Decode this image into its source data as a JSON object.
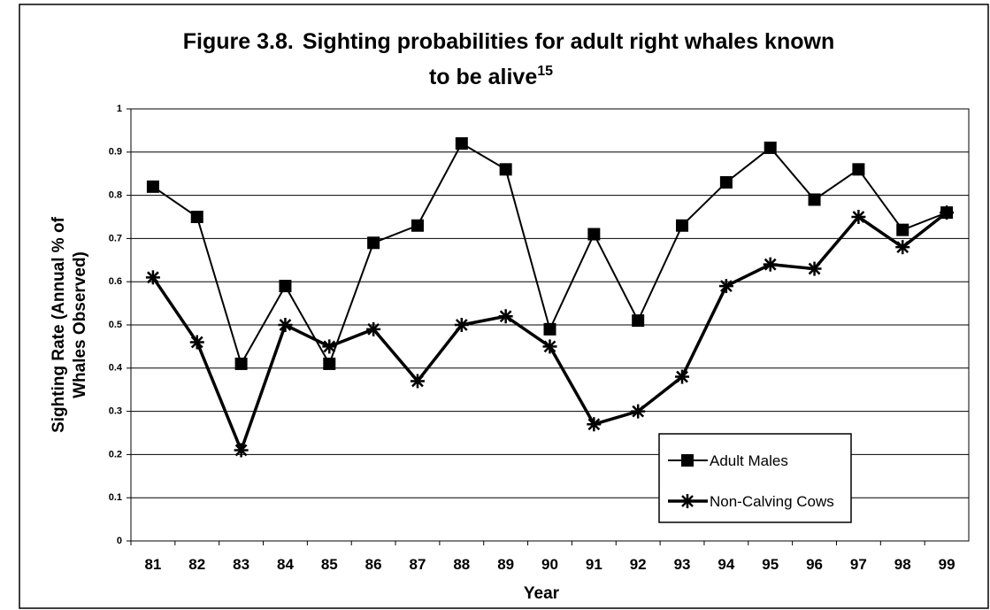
{
  "chart_data": {
    "type": "line",
    "title_prefix": "Figure 3.8.",
    "title": [
      "Sighting probabilities for adult right whales known",
      "to be alive"
    ],
    "title_superscript": "15",
    "x_label": "Year",
    "y_label": [
      "Sighting Rate (Annual % of",
      "Whales Observed)"
    ],
    "categories": [
      "81",
      "82",
      "83",
      "84",
      "85",
      "86",
      "87",
      "88",
      "89",
      "90",
      "91",
      "92",
      "93",
      "94",
      "95",
      "96",
      "97",
      "98",
      "99"
    ],
    "series": [
      {
        "name": "Adult Males",
        "color": "#000000",
        "marker": "square",
        "values": [
          0.82,
          0.75,
          0.41,
          0.59,
          0.41,
          0.69,
          0.73,
          0.92,
          0.86,
          0.49,
          0.71,
          0.51,
          0.73,
          0.83,
          0.91,
          0.79,
          0.86,
          0.72,
          0.76
        ]
      },
      {
        "name": "Non-Calving Cows",
        "color": "#000000",
        "marker": "asterisk",
        "values": [
          0.61,
          0.46,
          0.21,
          0.5,
          0.45,
          0.49,
          0.37,
          0.5,
          0.52,
          0.45,
          0.27,
          0.3,
          0.38,
          0.59,
          0.64,
          0.63,
          0.75,
          0.68,
          0.76
        ]
      }
    ],
    "ylim": [
      0,
      1
    ],
    "yticks": [
      0,
      0.1,
      0.2,
      0.3,
      0.4,
      0.5,
      0.6,
      0.7,
      0.8,
      0.9,
      1
    ],
    "grid": true,
    "legend": "lower right"
  }
}
